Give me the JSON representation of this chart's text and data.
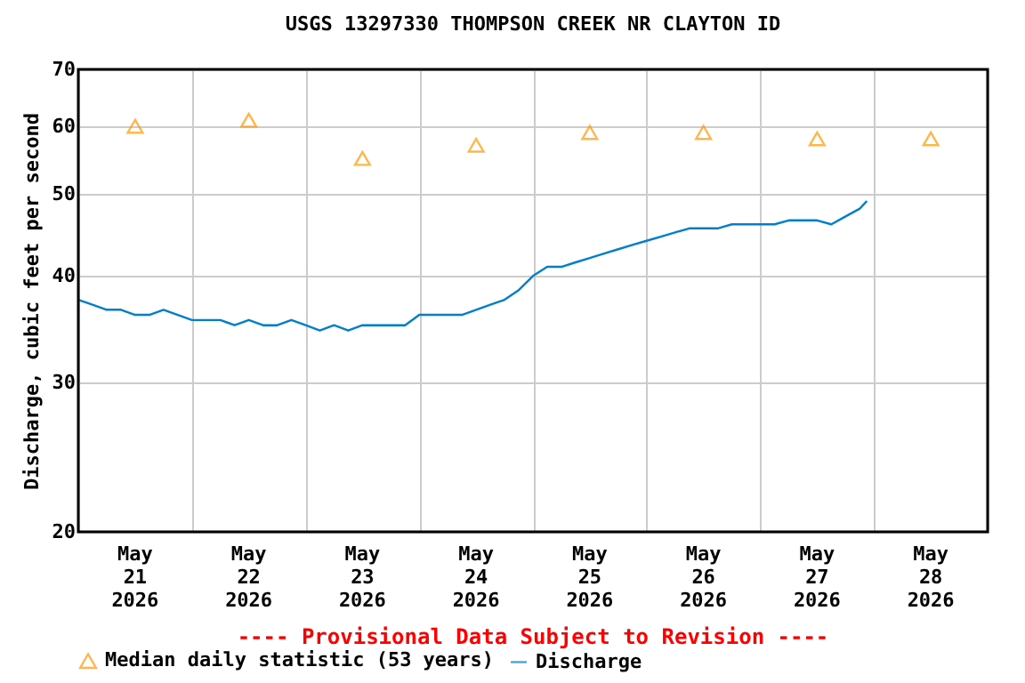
{
  "chart_data": {
    "type": "line",
    "title": "USGS 13297330 THOMPSON CREEK NR CLAYTON ID",
    "ylabel": "Discharge, cubic feet per second",
    "annotations": [
      "---- Provisional Data Subject to Revision ----"
    ],
    "log": "y",
    "grid": true,
    "legend": "bottom",
    "xlim": [
      "2026-05-21T00:00",
      "2026-05-29T00:00"
    ],
    "xticks": [
      {
        "value": "2026-05-21T00:00",
        "label": null
      },
      {
        "value": "2026-05-21T12:00",
        "label": "May\n21\n2026"
      },
      {
        "value": "2026-05-22T00:00",
        "label": null
      },
      {
        "value": "2026-05-22T12:00",
        "label": "May\n22\n2026"
      },
      {
        "value": "2026-05-23T00:00",
        "label": null
      },
      {
        "value": "2026-05-23T12:00",
        "label": "May\n23\n2026"
      },
      {
        "value": "2026-05-24T00:00",
        "label": null
      },
      {
        "value": "2026-05-24T12:00",
        "label": "May\n24\n2026"
      },
      {
        "value": "2026-05-25T00:00",
        "label": null
      },
      {
        "value": "2026-05-25T12:00",
        "label": "May\n25\n2026"
      },
      {
        "value": "2026-05-26T00:00",
        "label": null
      },
      {
        "value": "2026-05-26T12:00",
        "label": "May\n26\n2026"
      },
      {
        "value": "2026-05-27T00:00",
        "label": null
      },
      {
        "value": "2026-05-27T12:00",
        "label": "May\n27\n2026"
      },
      {
        "value": "2026-05-28T00:00",
        "label": null
      },
      {
        "value": "2026-05-28T12:00",
        "label": "May\n28\n2026"
      },
      {
        "value": "2026-05-29T00:00",
        "label": null
      }
    ],
    "ylim": [
      20,
      70
    ],
    "yticks": [
      20,
      30,
      40,
      50,
      60,
      70
    ],
    "series": [
      {
        "name": "Median daily statistic (53 years)",
        "type": "scatter",
        "marker": "triangle",
        "color": "#ff9900",
        "x": [
          "2026-05-21T12:00",
          "2026-05-22T12:00",
          "2026-05-23T12:00",
          "2026-05-24T12:00",
          "2026-05-25T12:00",
          "2026-05-26T12:00",
          "2026-05-27T12:00",
          "2026-05-28T12:00"
        ],
        "values": [
          60,
          61,
          55,
          57,
          59,
          59,
          58,
          58
        ]
      },
      {
        "name": "Discharge",
        "type": "line",
        "marker": "none",
        "line_style": "solid",
        "color": "#0080cc",
        "x": [
          "2026-05-21T00:00",
          "2026-05-21T03:00",
          "2026-05-21T06:00",
          "2026-05-21T09:00",
          "2026-05-21T12:00",
          "2026-05-21T15:00",
          "2026-05-21T18:00",
          "2026-05-21T21:00",
          "2026-05-22T00:00",
          "2026-05-22T03:00",
          "2026-05-22T06:00",
          "2026-05-22T09:00",
          "2026-05-22T12:00",
          "2026-05-22T15:00",
          "2026-05-22T18:00",
          "2026-05-22T21:00",
          "2026-05-23T00:00",
          "2026-05-23T03:00",
          "2026-05-23T06:00",
          "2026-05-23T09:00",
          "2026-05-23T12:00",
          "2026-05-23T15:00",
          "2026-05-23T18:00",
          "2026-05-23T21:00",
          "2026-05-24T00:00",
          "2026-05-24T03:00",
          "2026-05-24T06:00",
          "2026-05-24T09:00",
          "2026-05-24T12:00",
          "2026-05-24T15:00",
          "2026-05-24T18:00",
          "2026-05-24T21:00",
          "2026-05-25T00:00",
          "2026-05-25T03:00",
          "2026-05-25T06:00",
          "2026-05-25T09:00",
          "2026-05-25T12:00",
          "2026-05-25T15:00",
          "2026-05-25T18:00",
          "2026-05-25T21:00",
          "2026-05-26T00:00",
          "2026-05-26T03:00",
          "2026-05-26T06:00",
          "2026-05-26T09:00",
          "2026-05-26T12:00",
          "2026-05-26T15:00",
          "2026-05-26T18:00",
          "2026-05-26T21:00",
          "2026-05-27T00:00",
          "2026-05-27T03:00",
          "2026-05-27T06:00",
          "2026-05-27T09:00",
          "2026-05-27T12:00",
          "2026-05-27T15:00",
          "2026-05-27T18:00",
          "2026-05-27T21:00",
          "2026-05-27T22:30"
        ],
        "values": [
          37.5,
          37,
          36.5,
          36.5,
          36,
          36,
          36.5,
          36,
          35.5,
          35.5,
          35.5,
          35,
          35.5,
          35,
          35,
          35.5,
          35,
          34.5,
          35,
          34.5,
          35,
          35,
          35,
          35,
          36,
          36,
          36,
          36,
          36.5,
          37,
          37.5,
          38.5,
          40,
          41,
          41,
          41.5,
          42,
          42.5,
          43,
          43.5,
          44,
          44.5,
          45,
          45.5,
          45.5,
          45.5,
          46,
          46,
          46,
          46,
          46.5,
          46.5,
          46.5,
          46,
          47,
          48,
          49
        ]
      }
    ]
  }
}
